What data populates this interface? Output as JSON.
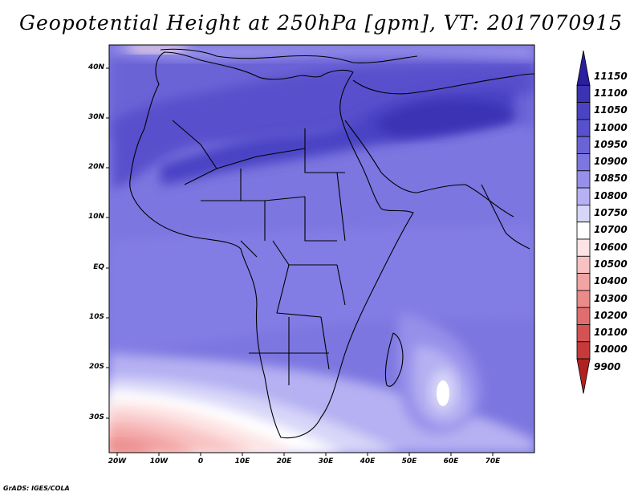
{
  "title": "Geopotential Height at 250hPa [gpm], VT: 2017070915",
  "credit": "GrADS: IGES/COLA",
  "lat_labels": [
    "40N",
    "30N",
    "20N",
    "10N",
    "EQ",
    "10S",
    "20S",
    "30S"
  ],
  "lon_labels": [
    "20W",
    "10W",
    "0",
    "10E",
    "20E",
    "30E",
    "40E",
    "50E",
    "60E",
    "70E"
  ],
  "colorbar": {
    "levels": [
      "11150",
      "11100",
      "11050",
      "11000",
      "10950",
      "10900",
      "10850",
      "10800",
      "10750",
      "10700",
      "10600",
      "10500",
      "10400",
      "10300",
      "10200",
      "10100",
      "10000",
      "9900"
    ],
    "colors": [
      "#2a1f9e",
      "#3b33b4",
      "#4a43c4",
      "#5850cc",
      "#6a63d6",
      "#7c76e0",
      "#9690ea",
      "#b5b1f2",
      "#d8d6f8",
      "#ffffff",
      "#fde3e3",
      "#f8c2c2",
      "#f2a3a3",
      "#ea8a8a",
      "#e06e6e",
      "#d45252",
      "#c63a3a",
      "#b02222"
    ]
  }
}
